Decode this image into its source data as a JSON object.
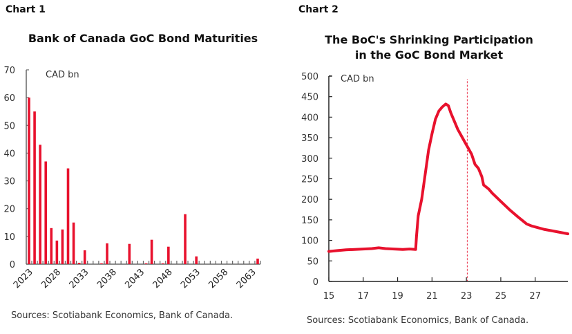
{
  "chart_data": [
    {
      "label": "Chart 1",
      "type": "bar",
      "title": "Bank of Canada GoC Bond Maturities",
      "unit_label": "CAD bn",
      "xlabel": "",
      "ylabel": "",
      "ylim": [
        0,
        70
      ],
      "yticks": [
        0,
        10,
        20,
        30,
        40,
        50,
        60,
        70
      ],
      "xlim": [
        2023,
        2064
      ],
      "xtick_labels": [
        "2023",
        "2028",
        "2033",
        "2038",
        "2043",
        "2048",
        "2053",
        "2058",
        "2063"
      ],
      "categories": [
        2023,
        2024,
        2025,
        2026,
        2027,
        2028,
        2029,
        2030,
        2031,
        2032,
        2033,
        2036,
        2037,
        2041,
        2044,
        2045,
        2047,
        2048,
        2051,
        2053,
        2064
      ],
      "values": [
        60,
        55,
        43,
        37,
        13,
        8.5,
        12.5,
        34.5,
        15,
        0.5,
        5,
        0.3,
        7.5,
        7.3,
        0.3,
        8.8,
        0.3,
        6.3,
        18,
        2.8,
        2
      ],
      "color": "#e8112d",
      "source": "Sources: Scotiabank Economics, Bank of Canada."
    },
    {
      "label": "Chart 2",
      "type": "line",
      "title_lines": [
        "The BoC's Shrinking Participation",
        "in the GoC Bond Market"
      ],
      "unit_label": "CAD bn",
      "xlabel": "",
      "ylabel": "",
      "ylim": [
        0,
        500
      ],
      "yticks": [
        0,
        50,
        100,
        150,
        200,
        250,
        300,
        350,
        400,
        450,
        500
      ],
      "xlim": [
        15,
        28.9
      ],
      "xticks": [
        15,
        17,
        19,
        21,
        23,
        25,
        27
      ],
      "xtick_labels": [
        "15",
        "17",
        "19",
        "21",
        "23",
        "25",
        "27"
      ],
      "vline_x": 23.05,
      "color": "#e8112d",
      "x": [
        15,
        15.5,
        16,
        16.5,
        17,
        17.5,
        17.9,
        18.3,
        18.8,
        19.3,
        19.7,
        20.05,
        20.1,
        20.2,
        20.4,
        20.6,
        20.8,
        21.0,
        21.2,
        21.4,
        21.6,
        21.8,
        21.95,
        22.1,
        22.3,
        22.5,
        22.7,
        22.9,
        23.1,
        23.3,
        23.5,
        23.7,
        23.9,
        24.0,
        24.3,
        24.5,
        25.0,
        25.5,
        26.0,
        26.5,
        26.8,
        27.5,
        28.0,
        28.9
      ],
      "y": [
        73,
        75,
        77,
        78,
        79,
        80,
        82,
        80,
        79,
        78,
        79,
        78,
        110,
        160,
        200,
        260,
        320,
        360,
        395,
        415,
        425,
        432,
        428,
        410,
        390,
        370,
        355,
        340,
        325,
        310,
        285,
        275,
        255,
        235,
        225,
        215,
        195,
        175,
        157,
        140,
        135,
        127,
        123,
        116
      ]
    }
  ]
}
